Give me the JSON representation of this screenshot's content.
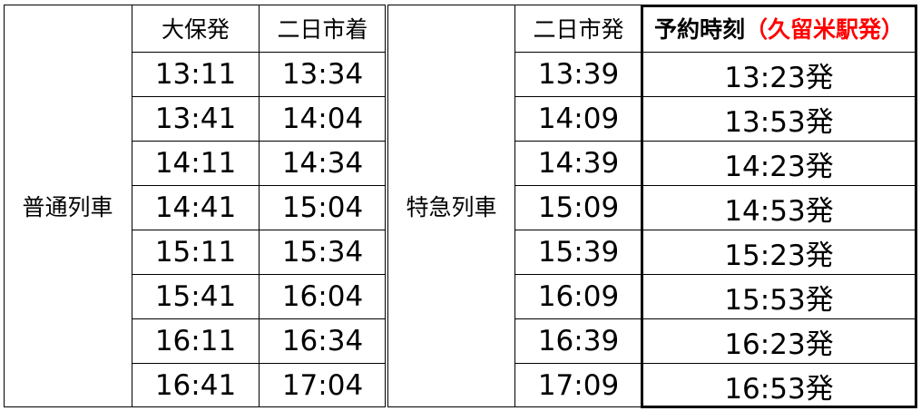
{
  "headers": {
    "ohori_dep": "大保発",
    "futsukaichi_arr": "二日市着",
    "futsukaichi_dep": "二日市発",
    "reservation_time": "予約時刻",
    "reservation_note": "（久留米駅発）"
  },
  "groups": {
    "local": "普通列車",
    "express": "特急列車"
  },
  "local_rows": [
    {
      "dep": "13:11",
      "arr": "13:34"
    },
    {
      "dep": "13:41",
      "arr": "14:04"
    },
    {
      "dep": "14:11",
      "arr": "14:34"
    },
    {
      "dep": "14:41",
      "arr": "15:04"
    },
    {
      "dep": "15:11",
      "arr": "15:34"
    },
    {
      "dep": "15:41",
      "arr": "16:04"
    },
    {
      "dep": "16:11",
      "arr": "16:34"
    },
    {
      "dep": "16:41",
      "arr": "17:04"
    }
  ],
  "express_rows": [
    {
      "dep": "13:39",
      "reserve": "13:23発"
    },
    {
      "dep": "14:09",
      "reserve": "13:53発"
    },
    {
      "dep": "14:39",
      "reserve": "14:23発"
    },
    {
      "dep": "15:09",
      "reserve": "14:53発"
    },
    {
      "dep": "15:39",
      "reserve": "15:23発"
    },
    {
      "dep": "16:09",
      "reserve": "15:53発"
    },
    {
      "dep": "16:39",
      "reserve": "16:23発"
    },
    {
      "dep": "17:09",
      "reserve": "16:53発"
    }
  ],
  "colors": {
    "note": "#ff0000",
    "text": "#000000"
  }
}
